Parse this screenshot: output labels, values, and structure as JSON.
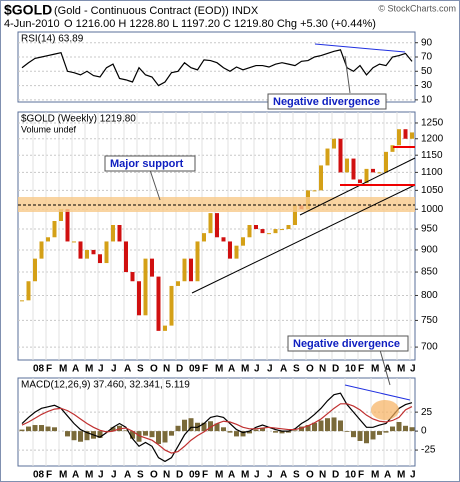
{
  "header": {
    "symbol": "$GOLD",
    "description": "(Gold - Continuous Contract (EOD)) INDX",
    "source": "© StockCharts.com",
    "date": "4-Jun-2010",
    "quote": "O 1216.00  H 1228.80  L 1197.20  C 1219.80  Chg +5.30 (+0.44%)"
  },
  "annotations": {
    "rsi_divergence": "Negative divergence",
    "support": "Major support",
    "macd_divergence": "Negative divergence"
  },
  "chart_data": [
    {
      "type": "line",
      "title": "RSI(14) 63.89",
      "color": "#000000",
      "values": [
        55,
        62,
        68,
        70,
        72,
        74,
        76,
        50,
        48,
        45,
        50,
        44,
        42,
        55,
        60,
        40,
        38,
        35,
        55,
        45,
        42,
        30,
        35,
        48,
        50,
        62,
        55,
        52,
        66,
        65,
        62,
        55,
        50,
        56,
        52,
        55,
        58,
        58,
        56,
        60,
        62,
        60,
        58,
        64,
        65,
        70,
        72,
        75,
        78,
        80,
        55,
        50,
        58,
        45,
        55,
        60,
        58,
        70,
        72,
        75,
        63.89
      ],
      "ylim": [
        7,
        105
      ],
      "yticks": [
        10,
        30,
        50,
        70,
        90
      ],
      "grid": true
    },
    {
      "type": "candle",
      "title": "$GOLD (Weekly) 1219.80",
      "subtitle": "Volume undef",
      "up_color": "#d4a017",
      "down_color": "#d01010",
      "categories": [
        null,
        null,
        "08",
        null,
        "F",
        null,
        "M",
        null,
        "A",
        null,
        "M",
        null,
        "J",
        null,
        "J",
        null,
        "A",
        null,
        "S",
        null,
        "O",
        null,
        "N",
        null,
        "D",
        null,
        "09",
        null,
        "F",
        null,
        "M",
        null,
        "A",
        null,
        "M",
        null,
        "J",
        null,
        "J",
        null,
        "A",
        null,
        "S",
        null,
        "O",
        null,
        "N",
        null,
        "D",
        null,
        "10",
        null,
        "F",
        null,
        "M",
        null,
        "A",
        null,
        "M",
        null,
        "J"
      ],
      "values": [
        790,
        830,
        880,
        920,
        930,
        970,
        1000,
        920,
        920,
        880,
        900,
        890,
        870,
        920,
        960,
        920,
        850,
        830,
        760,
        880,
        840,
        730,
        740,
        820,
        830,
        880,
        830,
        920,
        940,
        990,
        930,
        920,
        880,
        910,
        930,
        960,
        950,
        940,
        940,
        950,
        950,
        960,
        1010,
        1000,
        1050,
        1050,
        1120,
        1170,
        1200,
        1100,
        1140,
        1080,
        1070,
        1110,
        1100,
        1100,
        1160,
        1180,
        1230,
        1200,
        1219.8
      ],
      "log_scale": true,
      "ylim": [
        677,
        1286
      ],
      "yticks": [
        700,
        750,
        800,
        850,
        900,
        950,
        1000,
        1050,
        1100,
        1150,
        1200,
        1250
      ],
      "grid": true
    },
    {
      "type": "line",
      "title": "MACD(12,26,9) 37.460, 32.341, 5.119",
      "categories": [
        null,
        null,
        "08",
        null,
        "F",
        null,
        "M",
        null,
        "A",
        null,
        "M",
        null,
        "J",
        null,
        "J",
        null,
        "A",
        null,
        "S",
        null,
        "O",
        null,
        "N",
        null,
        "D",
        null,
        "09",
        null,
        "F",
        null,
        "M",
        null,
        "A",
        null,
        "M",
        null,
        "J",
        null,
        "J",
        null,
        "A",
        null,
        "S",
        null,
        "O",
        null,
        "N",
        null,
        "D",
        null,
        "10",
        null,
        "F",
        null,
        "M",
        null,
        "A",
        null,
        "M",
        null,
        "J"
      ],
      "series": [
        {
          "type": "bar",
          "color": "#7a6a3a",
          "values": [
            2,
            6,
            8,
            8,
            6,
            5,
            0,
            -7,
            -12,
            -14,
            -12,
            -10,
            -9,
            -1,
            5,
            7,
            1,
            -10,
            -14,
            -6,
            -8,
            -17,
            -15,
            -6,
            7,
            15,
            17,
            11,
            11,
            13,
            10,
            5,
            -2,
            -7,
            -7,
            -3,
            2,
            4,
            0,
            -2,
            -3,
            -2,
            1,
            6,
            8,
            11,
            14,
            17,
            18,
            14,
            -1,
            -8,
            -13,
            -16,
            -11,
            -5,
            -2,
            6,
            12,
            7,
            5.119
          ]
        },
        {
          "color": "#000000",
          "values": [
            10,
            18,
            25,
            30,
            32,
            34,
            30,
            20,
            10,
            2,
            -2,
            -5,
            -8,
            -2,
            5,
            10,
            5,
            -10,
            -20,
            -15,
            -20,
            -35,
            -40,
            -35,
            -20,
            -5,
            5,
            5,
            10,
            18,
            20,
            18,
            10,
            2,
            -2,
            0,
            5,
            8,
            5,
            2,
            0,
            0,
            3,
            10,
            15,
            22,
            30,
            40,
            48,
            50,
            35,
            25,
            15,
            5,
            5,
            8,
            10,
            20,
            30,
            35,
            37.46
          ]
        },
        {
          "color": "#c03030",
          "values": [
            8,
            12,
            17,
            22,
            26,
            29,
            30,
            27,
            22,
            16,
            10,
            5,
            1,
            -1,
            0,
            3,
            4,
            0,
            -6,
            -9,
            -12,
            -18,
            -25,
            -29,
            -27,
            -20,
            -12,
            -6,
            -1,
            5,
            10,
            13,
            12,
            9,
            5,
            3,
            3,
            4,
            5,
            4,
            3,
            2,
            2,
            4,
            7,
            11,
            16,
            23,
            30,
            36,
            36,
            33,
            28,
            21,
            16,
            13,
            12,
            14,
            18,
            28,
            32.341
          ]
        }
      ],
      "ylim": [
        -46,
        70
      ],
      "yticks": [
        -25,
        0,
        25
      ],
      "grid": true
    }
  ]
}
